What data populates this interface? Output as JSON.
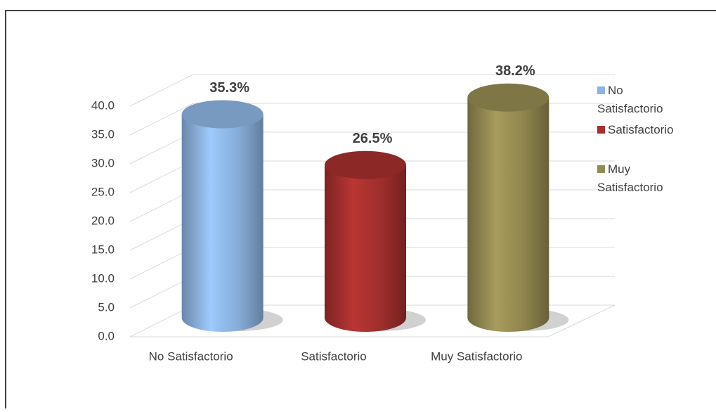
{
  "chart_data": {
    "type": "bar3d",
    "categories": [
      "No Satisfactorio",
      "Satisfactorio",
      "Muy Satisfactorio"
    ],
    "values": [
      35.3,
      26.5,
      38.2
    ],
    "value_labels": [
      "35.3%",
      "26.5%",
      "38.2%"
    ],
    "colors": [
      "#8db4e2",
      "#a5302e",
      "#958b52"
    ],
    "ylim": [
      0,
      40
    ],
    "yticks": [
      {
        "value": 0,
        "label": "0.0"
      },
      {
        "value": 5,
        "label": "5.0"
      },
      {
        "value": 10,
        "label": "10.0"
      },
      {
        "value": 15,
        "label": "15.0"
      },
      {
        "value": 20,
        "label": "20.0"
      },
      {
        "value": 25,
        "label": "25.0"
      },
      {
        "value": 30,
        "label": "30.0"
      },
      {
        "value": 35,
        "label": "35.0"
      },
      {
        "value": 40,
        "label": "40.0"
      }
    ],
    "grid": true,
    "legend": "right"
  }
}
